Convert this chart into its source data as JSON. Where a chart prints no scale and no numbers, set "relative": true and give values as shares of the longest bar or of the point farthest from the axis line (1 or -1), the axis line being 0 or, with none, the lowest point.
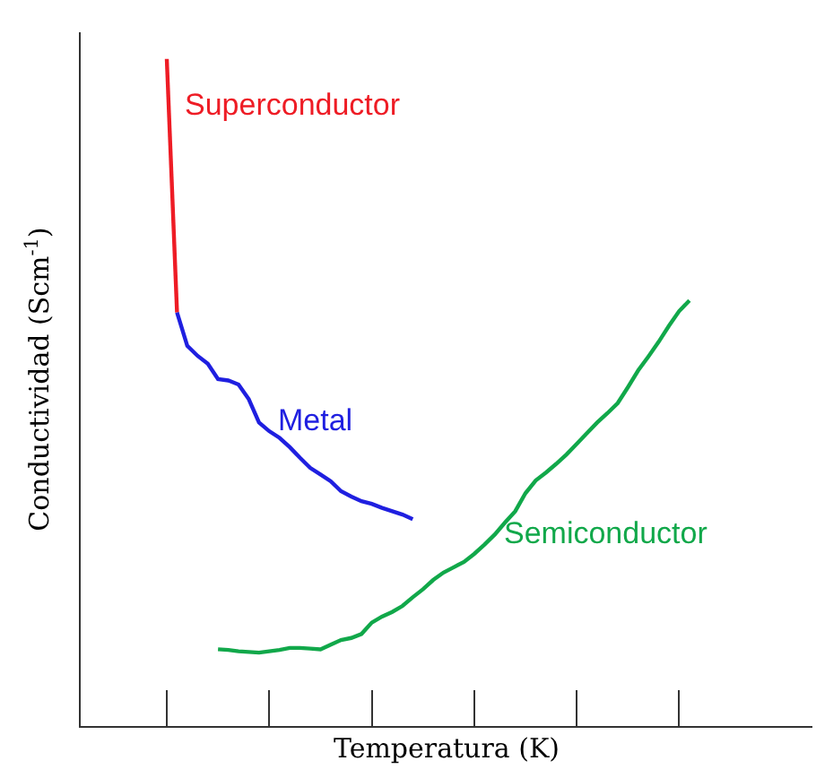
{
  "chart_data": {
    "type": "line",
    "relative": true,
    "xlabel": "Temperatura (K)",
    "ylabel": "Conductividad (Scm$^{-1}$)",
    "grid": false,
    "legend": false,
    "marker": "none",
    "line_style": "solid",
    "categories": [
      null,
      null,
      null,
      null,
      null,
      null,
      null,
      null,
      null,
      null,
      null,
      null,
      null,
      null,
      null,
      null,
      null,
      null,
      null,
      null,
      null,
      null,
      null,
      null,
      null,
      null,
      null,
      null,
      null,
      null,
      null,
      null,
      null,
      null,
      null,
      null,
      null,
      null,
      null,
      null,
      null,
      null,
      null,
      null,
      null,
      null,
      null,
      null,
      null,
      null,
      null,
      null
    ],
    "series": [
      {
        "name": "Superconductor",
        "color": "#ee1c25",
        "values": [
          1.0,
          0.62,
          null,
          null,
          null,
          null,
          null,
          null,
          null,
          null,
          null,
          null,
          null,
          null,
          null,
          null,
          null,
          null,
          null,
          null,
          null,
          null,
          null,
          null,
          null,
          null,
          null,
          null,
          null,
          null,
          null,
          null,
          null,
          null,
          null,
          null,
          null,
          null,
          null,
          null,
          null,
          null,
          null,
          null,
          null,
          null,
          null,
          null,
          null,
          null,
          null,
          null
        ]
      },
      {
        "name": "Metal",
        "color": "#1f1fe0",
        "values": [
          null,
          0.62,
          0.57,
          0.555,
          0.543,
          0.52,
          0.518,
          0.512,
          0.49,
          0.455,
          0.442,
          0.432,
          0.418,
          0.402,
          0.387,
          0.377,
          0.367,
          0.352,
          0.344,
          0.337,
          0.333,
          0.327,
          0.322,
          0.317,
          0.31,
          null,
          null,
          null,
          null,
          null,
          null,
          null,
          null,
          null,
          null,
          null,
          null,
          null,
          null,
          null,
          null,
          null,
          null,
          null,
          null,
          null,
          null,
          null,
          null,
          null,
          null,
          null
        ]
      },
      {
        "name": "Semiconductor",
        "color": "#11a84a",
        "values": [
          null,
          null,
          null,
          null,
          null,
          0.115,
          0.114,
          0.112,
          0.111,
          0.11,
          0.112,
          0.114,
          0.117,
          0.117,
          0.116,
          0.115,
          0.122,
          0.129,
          0.132,
          0.138,
          0.155,
          0.164,
          0.171,
          0.18,
          0.193,
          0.205,
          0.219,
          0.23,
          0.238,
          0.246,
          0.258,
          0.272,
          0.287,
          0.305,
          0.322,
          0.349,
          0.368,
          0.38,
          0.393,
          0.407,
          0.423,
          0.439,
          0.455,
          0.469,
          0.484,
          0.508,
          0.533,
          0.554,
          0.576,
          0.6,
          0.622,
          0.638
        ]
      }
    ]
  }
}
